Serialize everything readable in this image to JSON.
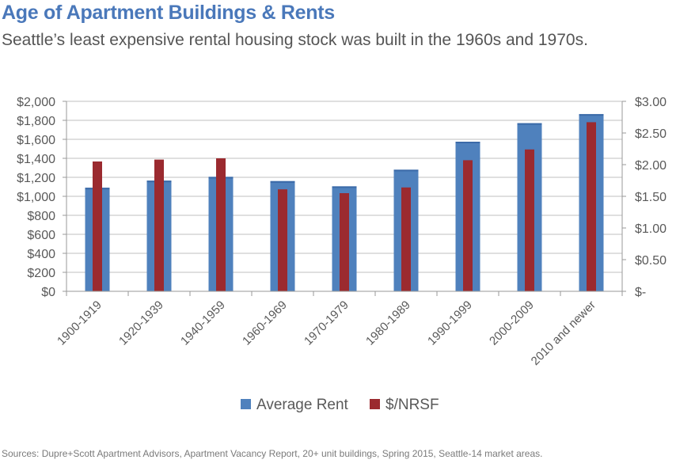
{
  "header": {
    "title": "Age of Apartment Buildings & Rents",
    "subtitle": "Seattle’s least expensive rental housing stock was built in the 1960s and 1970s."
  },
  "footer": {
    "source": "Sources: Dupre+Scott Apartment Advisors, Apartment Vacancy Report, 20+ unit buildings, Spring 2015, Seattle-14 market areas."
  },
  "colors": {
    "rent": "#4f81bd",
    "nrsf": "#9b2a2f",
    "grid": "#bfbfbf",
    "axis": "#999999",
    "text": "#595959"
  },
  "chart_data": {
    "type": "bar",
    "title": "Age of Apartment Buildings & Rents",
    "categories": [
      "1900-1919",
      "1920-1939",
      "1940-1959",
      "1960-1969",
      "1970-1979",
      "1980-1989",
      "1990-1999",
      "2000-2009",
      "2010 and newer"
    ],
    "series": [
      {
        "name": "Average Rent",
        "axis": "left",
        "values": [
          1090,
          1165,
          1205,
          1160,
          1105,
          1280,
          1575,
          1770,
          1865
        ]
      },
      {
        "name": "$/NRSF",
        "axis": "right",
        "values": [
          2.05,
          2.08,
          2.1,
          1.61,
          1.55,
          1.64,
          2.07,
          2.24,
          2.67
        ]
      }
    ],
    "y_left": {
      "min": 0,
      "max": 2000,
      "step": 200,
      "tick_labels": [
        "$0",
        "$200",
        "$400",
        "$600",
        "$800",
        "$1,000",
        "$1,200",
        "$1,400",
        "$1,600",
        "$1,800",
        "$2,000"
      ]
    },
    "y_right": {
      "min": 0,
      "max": 3,
      "step": 0.5,
      "tick_labels": [
        "$-",
        "$0.50",
        "$1.00",
        "$1.50",
        "$2.00",
        "$2.50",
        "$3.00"
      ]
    },
    "grid": true,
    "legend": "bottom-center",
    "legend_entries": [
      "Average Rent",
      "$/NRSF"
    ]
  }
}
